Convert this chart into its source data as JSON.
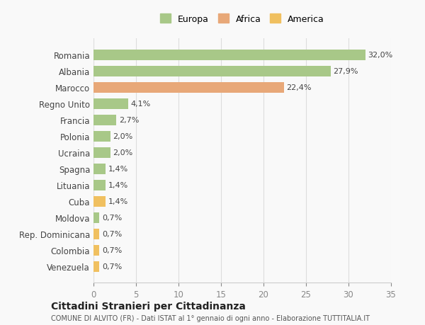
{
  "categories": [
    "Venezuela",
    "Colombia",
    "Rep. Dominicana",
    "Moldova",
    "Cuba",
    "Lituania",
    "Spagna",
    "Ucraina",
    "Polonia",
    "Francia",
    "Regno Unito",
    "Marocco",
    "Albania",
    "Romania"
  ],
  "values": [
    0.7,
    0.7,
    0.7,
    0.7,
    1.4,
    1.4,
    1.4,
    2.0,
    2.0,
    2.7,
    4.1,
    22.4,
    27.9,
    32.0
  ],
  "labels": [
    "0,7%",
    "0,7%",
    "0,7%",
    "0,7%",
    "1,4%",
    "1,4%",
    "1,4%",
    "2,0%",
    "2,0%",
    "2,7%",
    "4,1%",
    "22,4%",
    "27,9%",
    "32,0%"
  ],
  "colors": [
    "#f0c060",
    "#f0c060",
    "#f0c060",
    "#a8c888",
    "#f0c060",
    "#a8c888",
    "#a8c888",
    "#a8c888",
    "#a8c888",
    "#a8c888",
    "#a8c888",
    "#e8a878",
    "#a8c888",
    "#a8c888"
  ],
  "continent": [
    "America",
    "America",
    "America",
    "Europa",
    "America",
    "Europa",
    "Europa",
    "Europa",
    "Europa",
    "Europa",
    "Europa",
    "Africa",
    "Europa",
    "Europa"
  ],
  "legend_labels": [
    "Europa",
    "Africa",
    "America"
  ],
  "legend_colors": [
    "#a8c888",
    "#e8a878",
    "#f0c060"
  ],
  "title1": "Cittadini Stranieri per Cittadinanza",
  "title2": "COMUNE DI ALVITO (FR) - Dati ISTAT al 1° gennaio di ogni anno - Elaborazione TUTTITALIA.IT",
  "xlim": [
    0,
    35
  ],
  "xticks": [
    0,
    5,
    10,
    15,
    20,
    25,
    30,
    35
  ],
  "background_color": "#f9f9f9",
  "bar_height": 0.65,
  "grid_color": "#dddddd"
}
